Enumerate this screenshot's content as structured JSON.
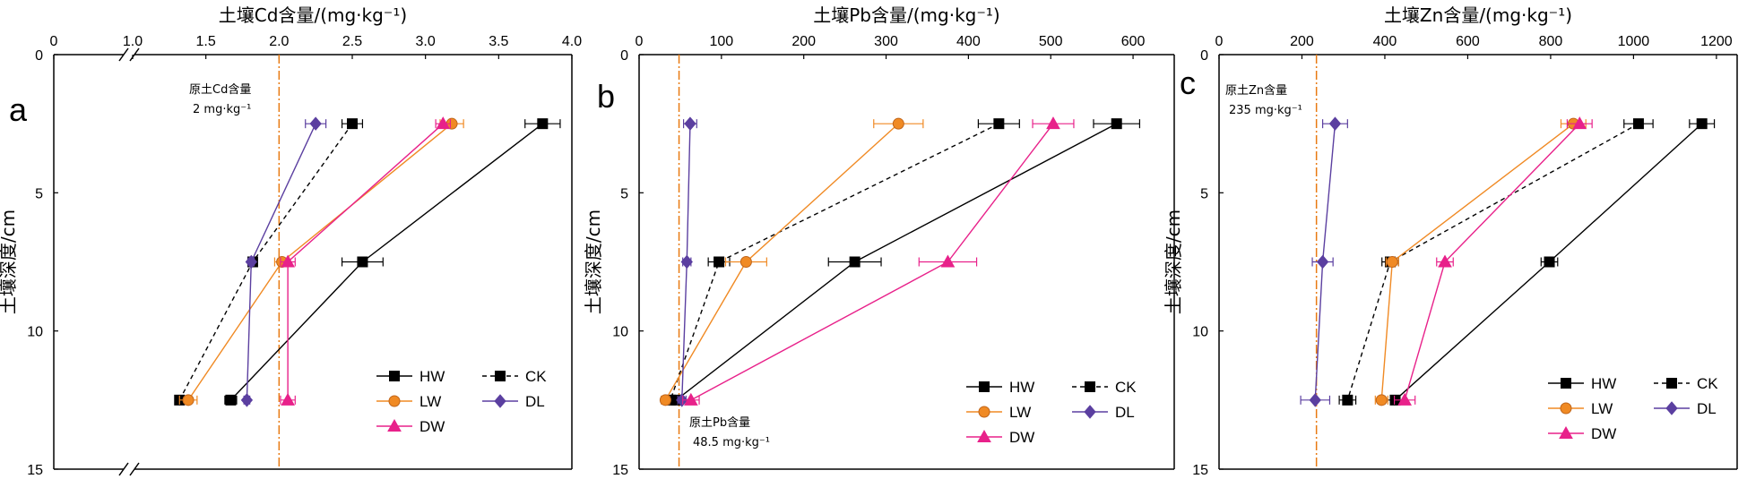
{
  "colors": {
    "HW": "#000000",
    "CK": "#000000",
    "LW": "#f08a24",
    "DL": "#5b3fa0",
    "DW": "#e8218a",
    "background_line": "#e87a12"
  },
  "chart_data": [
    {
      "type": "line",
      "panel": "a",
      "title": "土壤Cd含量/(mg·kg⁻¹)",
      "xlabel": "土壤Cd含量/(mg·kg⁻¹)",
      "ylabel": "土壤深度/cm",
      "x_axis_position": "top",
      "y_inverted": true,
      "x_break": true,
      "x_ticks": [
        "0",
        "1.0",
        "1.5",
        "2.0",
        "2.5",
        "3.0",
        "3.5",
        "4.0"
      ],
      "ylim": [
        0,
        15
      ],
      "y_ticks": [
        0,
        5,
        10,
        15
      ],
      "reference": {
        "value": 2.0,
        "label_line1": "原土Cd含量",
        "label_line2": "2 mg·kg⁻¹"
      },
      "legend_position": "bottom-right",
      "series": [
        {
          "name": "HW",
          "style": "solid",
          "marker": "square",
          "points": [
            {
              "x": 3.8,
              "y": 2.5,
              "err": 0.12
            },
            {
              "x": 2.57,
              "y": 7.5,
              "err": 0.14
            },
            {
              "x": 1.67,
              "y": 12.5,
              "err": 0.04
            }
          ]
        },
        {
          "name": "CK",
          "style": "dashed",
          "marker": "square",
          "points": [
            {
              "x": 2.5,
              "y": 2.5,
              "err": 0.07
            },
            {
              "x": 1.82,
              "y": 7.5,
              "err": 0.03
            },
            {
              "x": 1.32,
              "y": 12.5,
              "err": 0.03
            }
          ]
        },
        {
          "name": "LW",
          "style": "solid",
          "marker": "circle",
          "points": [
            {
              "x": 3.18,
              "y": 2.5,
              "err": 0.08
            },
            {
              "x": 2.02,
              "y": 7.5,
              "err": 0.05
            },
            {
              "x": 1.38,
              "y": 12.5,
              "err": 0.06
            }
          ]
        },
        {
          "name": "DL",
          "style": "solid",
          "marker": "diamond",
          "points": [
            {
              "x": 2.25,
              "y": 2.5,
              "err": 0.07
            },
            {
              "x": 1.81,
              "y": 7.5,
              "err": 0.02
            },
            {
              "x": 1.78,
              "y": 12.5,
              "err": 0.02
            }
          ]
        },
        {
          "name": "DW",
          "style": "solid",
          "marker": "triangle",
          "points": [
            {
              "x": 3.12,
              "y": 2.5,
              "err": 0.05
            },
            {
              "x": 2.06,
              "y": 7.5,
              "err": 0.05
            },
            {
              "x": 2.06,
              "y": 12.5,
              "err": 0.05
            }
          ]
        }
      ]
    },
    {
      "type": "line",
      "panel": "b",
      "title": "土壤Pb含量/(mg·kg⁻¹)",
      "xlabel": "土壤Pb含量/(mg·kg⁻¹)",
      "ylabel": "土壤深度/cm",
      "x_axis_position": "top",
      "y_inverted": true,
      "xlim": [
        0,
        650
      ],
      "x_ticks": [
        0,
        100,
        200,
        300,
        400,
        500,
        600
      ],
      "ylim": [
        0,
        15
      ],
      "y_ticks": [
        0,
        5,
        10,
        15
      ],
      "reference": {
        "value": 48.5,
        "label_line1": "原土Pb含量",
        "label_line2": "48.5 mg·kg⁻¹"
      },
      "legend_position": "bottom-right",
      "series": [
        {
          "name": "HW",
          "style": "solid",
          "marker": "square",
          "points": [
            {
              "x": 580,
              "y": 2.5,
              "err": 28
            },
            {
              "x": 262,
              "y": 7.5,
              "err": 32
            },
            {
              "x": 45,
              "y": 12.5,
              "err": 8
            }
          ]
        },
        {
          "name": "CK",
          "style": "dashed",
          "marker": "square",
          "points": [
            {
              "x": 437,
              "y": 2.5,
              "err": 25
            },
            {
              "x": 97,
              "y": 7.5,
              "err": 13
            },
            {
              "x": 38,
              "y": 12.5,
              "err": 8
            }
          ]
        },
        {
          "name": "LW",
          "style": "solid",
          "marker": "circle",
          "points": [
            {
              "x": 315,
              "y": 2.5,
              "err": 30
            },
            {
              "x": 130,
              "y": 7.5,
              "err": 25
            },
            {
              "x": 32,
              "y": 12.5,
              "err": 5
            }
          ]
        },
        {
          "name": "DL",
          "style": "solid",
          "marker": "diamond",
          "points": [
            {
              "x": 62,
              "y": 2.5,
              "err": 8
            },
            {
              "x": 58,
              "y": 7.5,
              "err": 5
            },
            {
              "x": 52,
              "y": 12.5,
              "err": 5
            }
          ]
        },
        {
          "name": "DW",
          "style": "solid",
          "marker": "triangle",
          "points": [
            {
              "x": 503,
              "y": 2.5,
              "err": 25
            },
            {
              "x": 375,
              "y": 7.5,
              "err": 35
            },
            {
              "x": 63,
              "y": 12.5,
              "err": 10
            }
          ]
        }
      ]
    },
    {
      "type": "line",
      "panel": "c",
      "title": "土壤Zn含量/(mg·kg⁻¹)",
      "xlabel": "土壤Zn含量/(mg·kg⁻¹)",
      "ylabel": "土壤深度/cm",
      "x_axis_position": "top",
      "y_inverted": true,
      "xlim": [
        0,
        1250
      ],
      "x_ticks": [
        0,
        200,
        400,
        600,
        800,
        1000,
        1200
      ],
      "ylim": [
        0,
        15
      ],
      "y_ticks": [
        0,
        5,
        10,
        15
      ],
      "reference": {
        "value": 235,
        "label_line1": "原土Zn含量",
        "label_line2": "235 mg·kg⁻¹"
      },
      "legend_position": "bottom-right",
      "series": [
        {
          "name": "HW",
          "style": "solid",
          "marker": "square",
          "points": [
            {
              "x": 1165,
              "y": 2.5,
              "err": 30
            },
            {
              "x": 797,
              "y": 7.5,
              "err": 20
            },
            {
              "x": 425,
              "y": 12.5,
              "err": 25
            }
          ]
        },
        {
          "name": "CK",
          "style": "dashed",
          "marker": "square",
          "points": [
            {
              "x": 1012,
              "y": 2.5,
              "err": 35
            },
            {
              "x": 413,
              "y": 7.5,
              "err": 20
            },
            {
              "x": 310,
              "y": 12.5,
              "err": 20
            }
          ]
        },
        {
          "name": "LW",
          "style": "solid",
          "marker": "circle",
          "points": [
            {
              "x": 855,
              "y": 2.5,
              "err": 30
            },
            {
              "x": 418,
              "y": 7.5,
              "err": 15
            },
            {
              "x": 392,
              "y": 12.5,
              "err": 15
            }
          ]
        },
        {
          "name": "DL",
          "style": "solid",
          "marker": "diamond",
          "points": [
            {
              "x": 280,
              "y": 2.5,
              "err": 30
            },
            {
              "x": 250,
              "y": 7.5,
              "err": 25
            },
            {
              "x": 232,
              "y": 12.5,
              "err": 35
            }
          ]
        },
        {
          "name": "DW",
          "style": "solid",
          "marker": "triangle",
          "points": [
            {
              "x": 870,
              "y": 2.5,
              "err": 30
            },
            {
              "x": 545,
              "y": 7.5,
              "err": 20
            },
            {
              "x": 448,
              "y": 12.5,
              "err": 25
            }
          ]
        }
      ]
    }
  ]
}
